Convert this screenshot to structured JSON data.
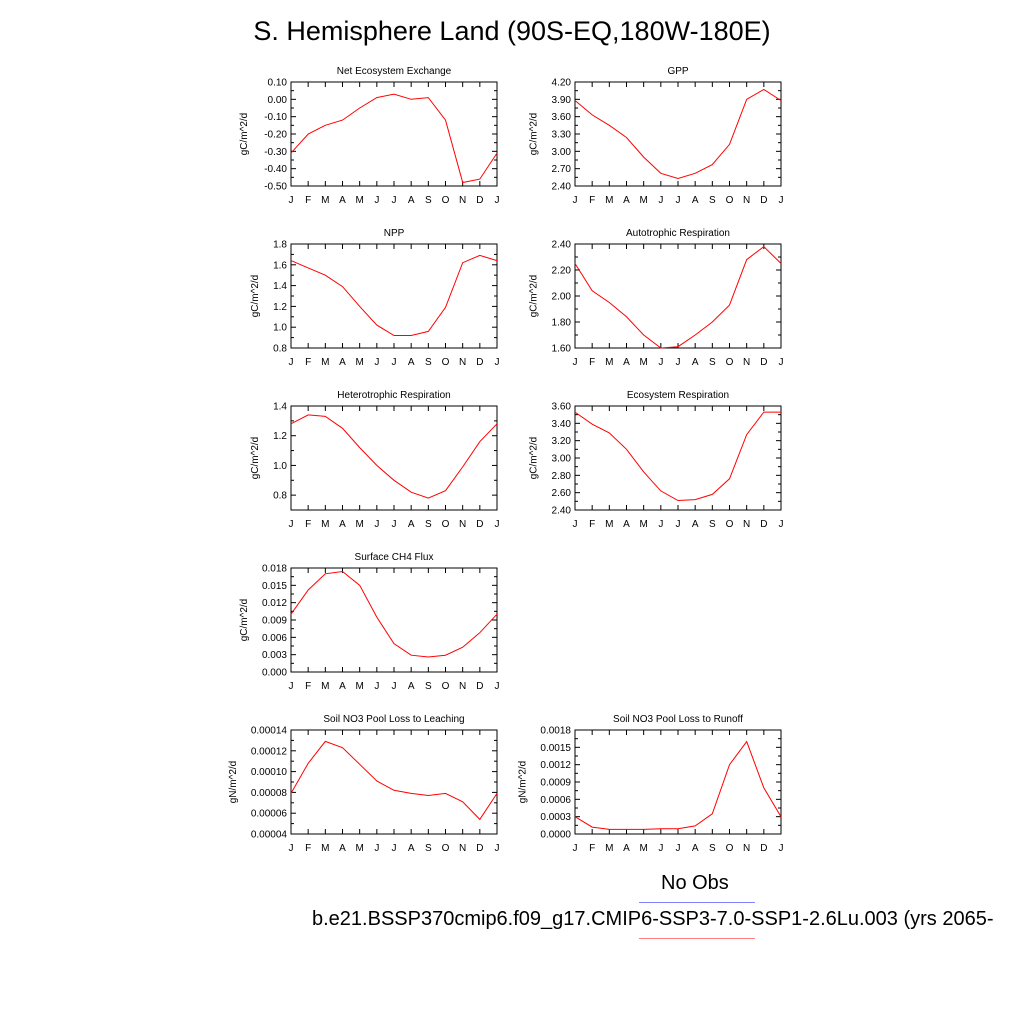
{
  "page": {
    "title": "S. Hemisphere Land (90S-EQ,180W-180E)"
  },
  "legend": {
    "obs_label": "No Obs",
    "obs_color": "#8080ff",
    "case_label": "b.e21.BSSP370cmip6.f09_g17.CMIP6-SSP3-7.0-SSP1-2.6Lu.003 (yrs 2065-",
    "case_color": "#ff8080",
    "line_color": "#ff0000"
  },
  "chart_data": [
    {
      "type": "line",
      "title": "Net Ecosystem Exchange",
      "ylabel": "gC/m^2/d",
      "x": [
        "J",
        "F",
        "M",
        "A",
        "M",
        "J",
        "J",
        "A",
        "S",
        "O",
        "N",
        "D",
        "J"
      ],
      "ylim": [
        -0.5,
        0.1
      ],
      "yticks": [
        "0.10",
        "0.00",
        "-0.10",
        "-0.20",
        "-0.30",
        "-0.40",
        "-0.50"
      ],
      "series": [
        {
          "values": [
            -0.31,
            -0.2,
            -0.15,
            -0.12,
            -0.05,
            0.01,
            0.03,
            0.0,
            0.01,
            -0.12,
            -0.48,
            -0.46,
            -0.31
          ]
        }
      ]
    },
    {
      "type": "line",
      "title": "GPP",
      "ylabel": "gC/m^2/d",
      "x": [
        "J",
        "F",
        "M",
        "A",
        "M",
        "J",
        "J",
        "A",
        "S",
        "O",
        "N",
        "D",
        "J"
      ],
      "ylim": [
        2.4,
        4.2
      ],
      "yticks": [
        "4.20",
        "3.90",
        "3.60",
        "3.30",
        "3.00",
        "2.70",
        "2.40"
      ],
      "series": [
        {
          "values": [
            3.88,
            3.63,
            3.45,
            3.24,
            2.9,
            2.62,
            2.53,
            2.62,
            2.77,
            3.12,
            3.9,
            4.07,
            3.88
          ]
        }
      ]
    },
    {
      "type": "line",
      "title": "NPP",
      "ylabel": "gC/m^2/d",
      "x": [
        "J",
        "F",
        "M",
        "A",
        "M",
        "J",
        "J",
        "A",
        "S",
        "O",
        "N",
        "D",
        "J"
      ],
      "ylim": [
        0.8,
        1.8
      ],
      "yticks": [
        "1.8",
        "1.6",
        "1.4",
        "1.2",
        "1.0",
        "0.8"
      ],
      "series": [
        {
          "values": [
            1.64,
            1.57,
            1.5,
            1.39,
            1.2,
            1.02,
            0.92,
            0.92,
            0.96,
            1.19,
            1.62,
            1.69,
            1.64
          ]
        }
      ]
    },
    {
      "type": "line",
      "title": "Autotrophic Respiration",
      "ylabel": "gC/m^2/d",
      "x": [
        "J",
        "F",
        "M",
        "A",
        "M",
        "J",
        "J",
        "A",
        "S",
        "O",
        "N",
        "D",
        "J"
      ],
      "ylim": [
        1.6,
        2.4
      ],
      "yticks": [
        "2.40",
        "2.20",
        "2.00",
        "1.80",
        "1.60"
      ],
      "series": [
        {
          "values": [
            2.25,
            2.04,
            1.95,
            1.84,
            1.7,
            1.6,
            1.61,
            1.7,
            1.8,
            1.93,
            2.28,
            2.38,
            2.25
          ]
        }
      ]
    },
    {
      "type": "line",
      "title": "Heterotrophic Respiration",
      "ylabel": "gC/m^2/d",
      "x": [
        "J",
        "F",
        "M",
        "A",
        "M",
        "J",
        "J",
        "A",
        "S",
        "O",
        "N",
        "D",
        "J"
      ],
      "ylim": [
        0.7,
        1.4
      ],
      "yticks": [
        "1.4",
        "1.2",
        "1.0",
        "0.8"
      ],
      "series": [
        {
          "values": [
            1.28,
            1.34,
            1.33,
            1.25,
            1.12,
            1.0,
            0.9,
            0.82,
            0.78,
            0.83,
            0.99,
            1.16,
            1.28
          ]
        }
      ]
    },
    {
      "type": "line",
      "title": "Ecosystem Respiration",
      "ylabel": "gC/m^2/d",
      "x": [
        "J",
        "F",
        "M",
        "A",
        "M",
        "J",
        "J",
        "A",
        "S",
        "O",
        "N",
        "D",
        "J"
      ],
      "ylim": [
        2.4,
        3.6
      ],
      "yticks": [
        "3.60",
        "3.40",
        "3.20",
        "3.00",
        "2.80",
        "2.60",
        "2.40"
      ],
      "series": [
        {
          "values": [
            3.53,
            3.39,
            3.29,
            3.1,
            2.84,
            2.62,
            2.51,
            2.52,
            2.58,
            2.76,
            3.27,
            3.53,
            3.53
          ]
        }
      ]
    },
    {
      "type": "line",
      "title": "Surface CH4 Flux",
      "ylabel": "gC/m^2/d",
      "x": [
        "J",
        "F",
        "M",
        "A",
        "M",
        "J",
        "J",
        "A",
        "S",
        "O",
        "N",
        "D",
        "J"
      ],
      "ylim": [
        0,
        0.018
      ],
      "yticks": [
        "0.018",
        "0.015",
        "0.012",
        "0.009",
        "0.006",
        "0.003",
        "0.000"
      ],
      "series": [
        {
          "values": [
            0.01,
            0.0142,
            0.017,
            0.0174,
            0.015,
            0.0095,
            0.0049,
            0.0029,
            0.0026,
            0.0029,
            0.0043,
            0.0068,
            0.01
          ]
        }
      ]
    },
    {
      "type": "line",
      "title": "Soil NO3 Pool Loss to Leaching",
      "ylabel": "gN/m^2/d",
      "x": [
        "J",
        "F",
        "M",
        "A",
        "M",
        "J",
        "J",
        "A",
        "S",
        "O",
        "N",
        "D",
        "J"
      ],
      "ylim": [
        4e-05,
        0.00014
      ],
      "yticks": [
        "0.00014",
        "0.00012",
        "0.00010",
        "0.00008",
        "0.00006",
        "0.00004"
      ],
      "series": [
        {
          "values": [
            7.9e-05,
            0.000108,
            0.000129,
            0.000123,
            0.000107,
            9.1e-05,
            8.2e-05,
            7.9e-05,
            7.7e-05,
            7.9e-05,
            7.1e-05,
            5.4e-05,
            7.9e-05
          ]
        }
      ]
    },
    {
      "type": "line",
      "title": "Soil NO3 Pool Loss to Runoff",
      "ylabel": "gN/m^2/d",
      "x": [
        "J",
        "F",
        "M",
        "A",
        "M",
        "J",
        "J",
        "A",
        "S",
        "O",
        "N",
        "D",
        "J"
      ],
      "ylim": [
        0,
        0.0018
      ],
      "yticks": [
        "0.0018",
        "0.0015",
        "0.0012",
        "0.0009",
        "0.0006",
        "0.0003",
        "0.0000"
      ],
      "series": [
        {
          "values": [
            0.0003,
            0.00012,
            8e-05,
            8e-05,
            8e-05,
            9e-05,
            9e-05,
            0.00014,
            0.00035,
            0.0012,
            0.0016,
            0.0008,
            0.0003
          ]
        }
      ]
    }
  ]
}
